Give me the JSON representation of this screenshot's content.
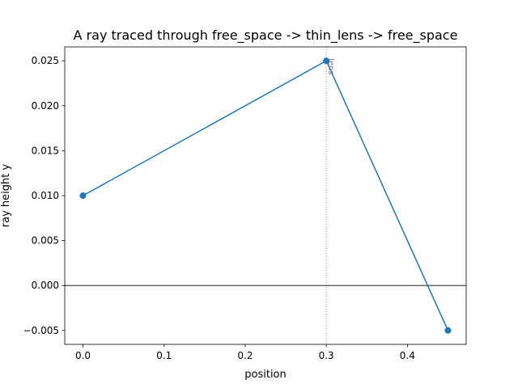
{
  "chart_data": {
    "type": "line",
    "title": "A ray traced through free_space -> thin_lens -> free_space",
    "xlabel": "position",
    "ylabel": "ray height y",
    "xlim": [
      -0.0225,
      0.4725
    ],
    "ylim": [
      -0.00655,
      0.02655
    ],
    "xticks": [
      {
        "value": 0.0,
        "label": "0.0"
      },
      {
        "value": 0.1,
        "label": "0.1"
      },
      {
        "value": 0.2,
        "label": "0.2"
      },
      {
        "value": 0.3,
        "label": "0.3"
      },
      {
        "value": 0.4,
        "label": "0.4"
      }
    ],
    "yticks": [
      {
        "value": -0.005,
        "label": "−0.005"
      },
      {
        "value": 0.0,
        "label": "0.000"
      },
      {
        "value": 0.005,
        "label": "0.005"
      },
      {
        "value": 0.01,
        "label": "0.010"
      },
      {
        "value": 0.015,
        "label": "0.015"
      },
      {
        "value": 0.02,
        "label": "0.020"
      },
      {
        "value": 0.025,
        "label": "0.025"
      }
    ],
    "series": [
      {
        "x": [
          0.0,
          0.3,
          0.45
        ],
        "y": [
          0.01,
          0.025,
          -0.005
        ],
        "color": "#1f77b4"
      }
    ],
    "reference_lines": {
      "horizontal": {
        "y": 0.0,
        "color": "#000000"
      },
      "vertical": {
        "x": 0.3,
        "color": "#808080",
        "style": "dotted",
        "label": "lens"
      }
    },
    "grid": false,
    "legend": "none"
  }
}
